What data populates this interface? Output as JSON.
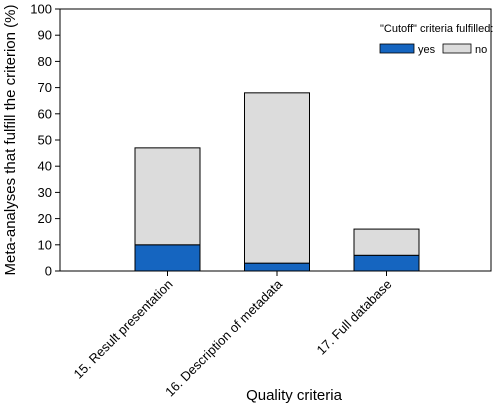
{
  "chart_data": {
    "type": "bar",
    "stacked": true,
    "categories": [
      "15. Result presentation",
      "16. Description of metadata",
      "17. Full database"
    ],
    "series": [
      {
        "name": "yes",
        "values": [
          10,
          3,
          6
        ],
        "color": "#1565C0"
      },
      {
        "name": "no",
        "values": [
          37,
          65,
          10
        ],
        "color": "#DCDCDC"
      }
    ],
    "ylabel": "Meta-analyses that fulfill the criterion   (%)",
    "xlabel": "Quality criteria",
    "ylim": [
      0,
      100
    ],
    "yticks": [
      0,
      10,
      20,
      30,
      40,
      50,
      60,
      70,
      80,
      90,
      100
    ],
    "grid": false,
    "legend_title": "\"Cutoff\" criteria fulfilled:",
    "legend_position": "top-right",
    "colors": {
      "yes": "#1565C0",
      "no": "#DCDCDC",
      "outline": "#000000"
    }
  }
}
